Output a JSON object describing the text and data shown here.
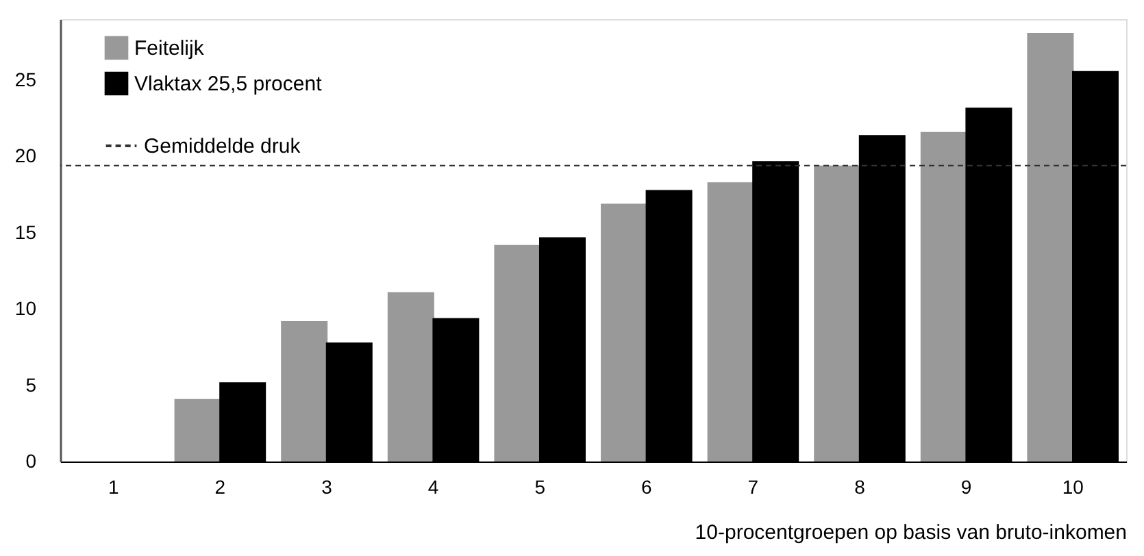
{
  "chart_data": {
    "type": "bar",
    "xlabel": "10-procentgroepen op basis van bruto-inkomen",
    "categories": [
      "1",
      "2",
      "3",
      "4",
      "5",
      "6",
      "7",
      "8",
      "9",
      "10"
    ],
    "series": [
      {
        "name": "Feitelijk",
        "color": "#999999",
        "values": [
          0,
          4.1,
          9.2,
          11.1,
          14.2,
          16.9,
          18.3,
          19.4,
          21.6,
          28.1
        ]
      },
      {
        "name": "Vlaktax 25,5 procent",
        "color": "#000000",
        "values": [
          0,
          5.2,
          7.8,
          9.4,
          14.7,
          17.8,
          19.7,
          21.4,
          23.2,
          25.6
        ]
      }
    ],
    "ref_lines": [
      {
        "axis": "y",
        "value": 19.4,
        "label": "Gemiddelde druk",
        "color": "#333333",
        "line_style": "dashed"
      }
    ],
    "ylim": [
      0,
      29
    ],
    "yticks": [
      0,
      5,
      10,
      15,
      20,
      25
    ],
    "grid": false,
    "legend": "top left"
  }
}
